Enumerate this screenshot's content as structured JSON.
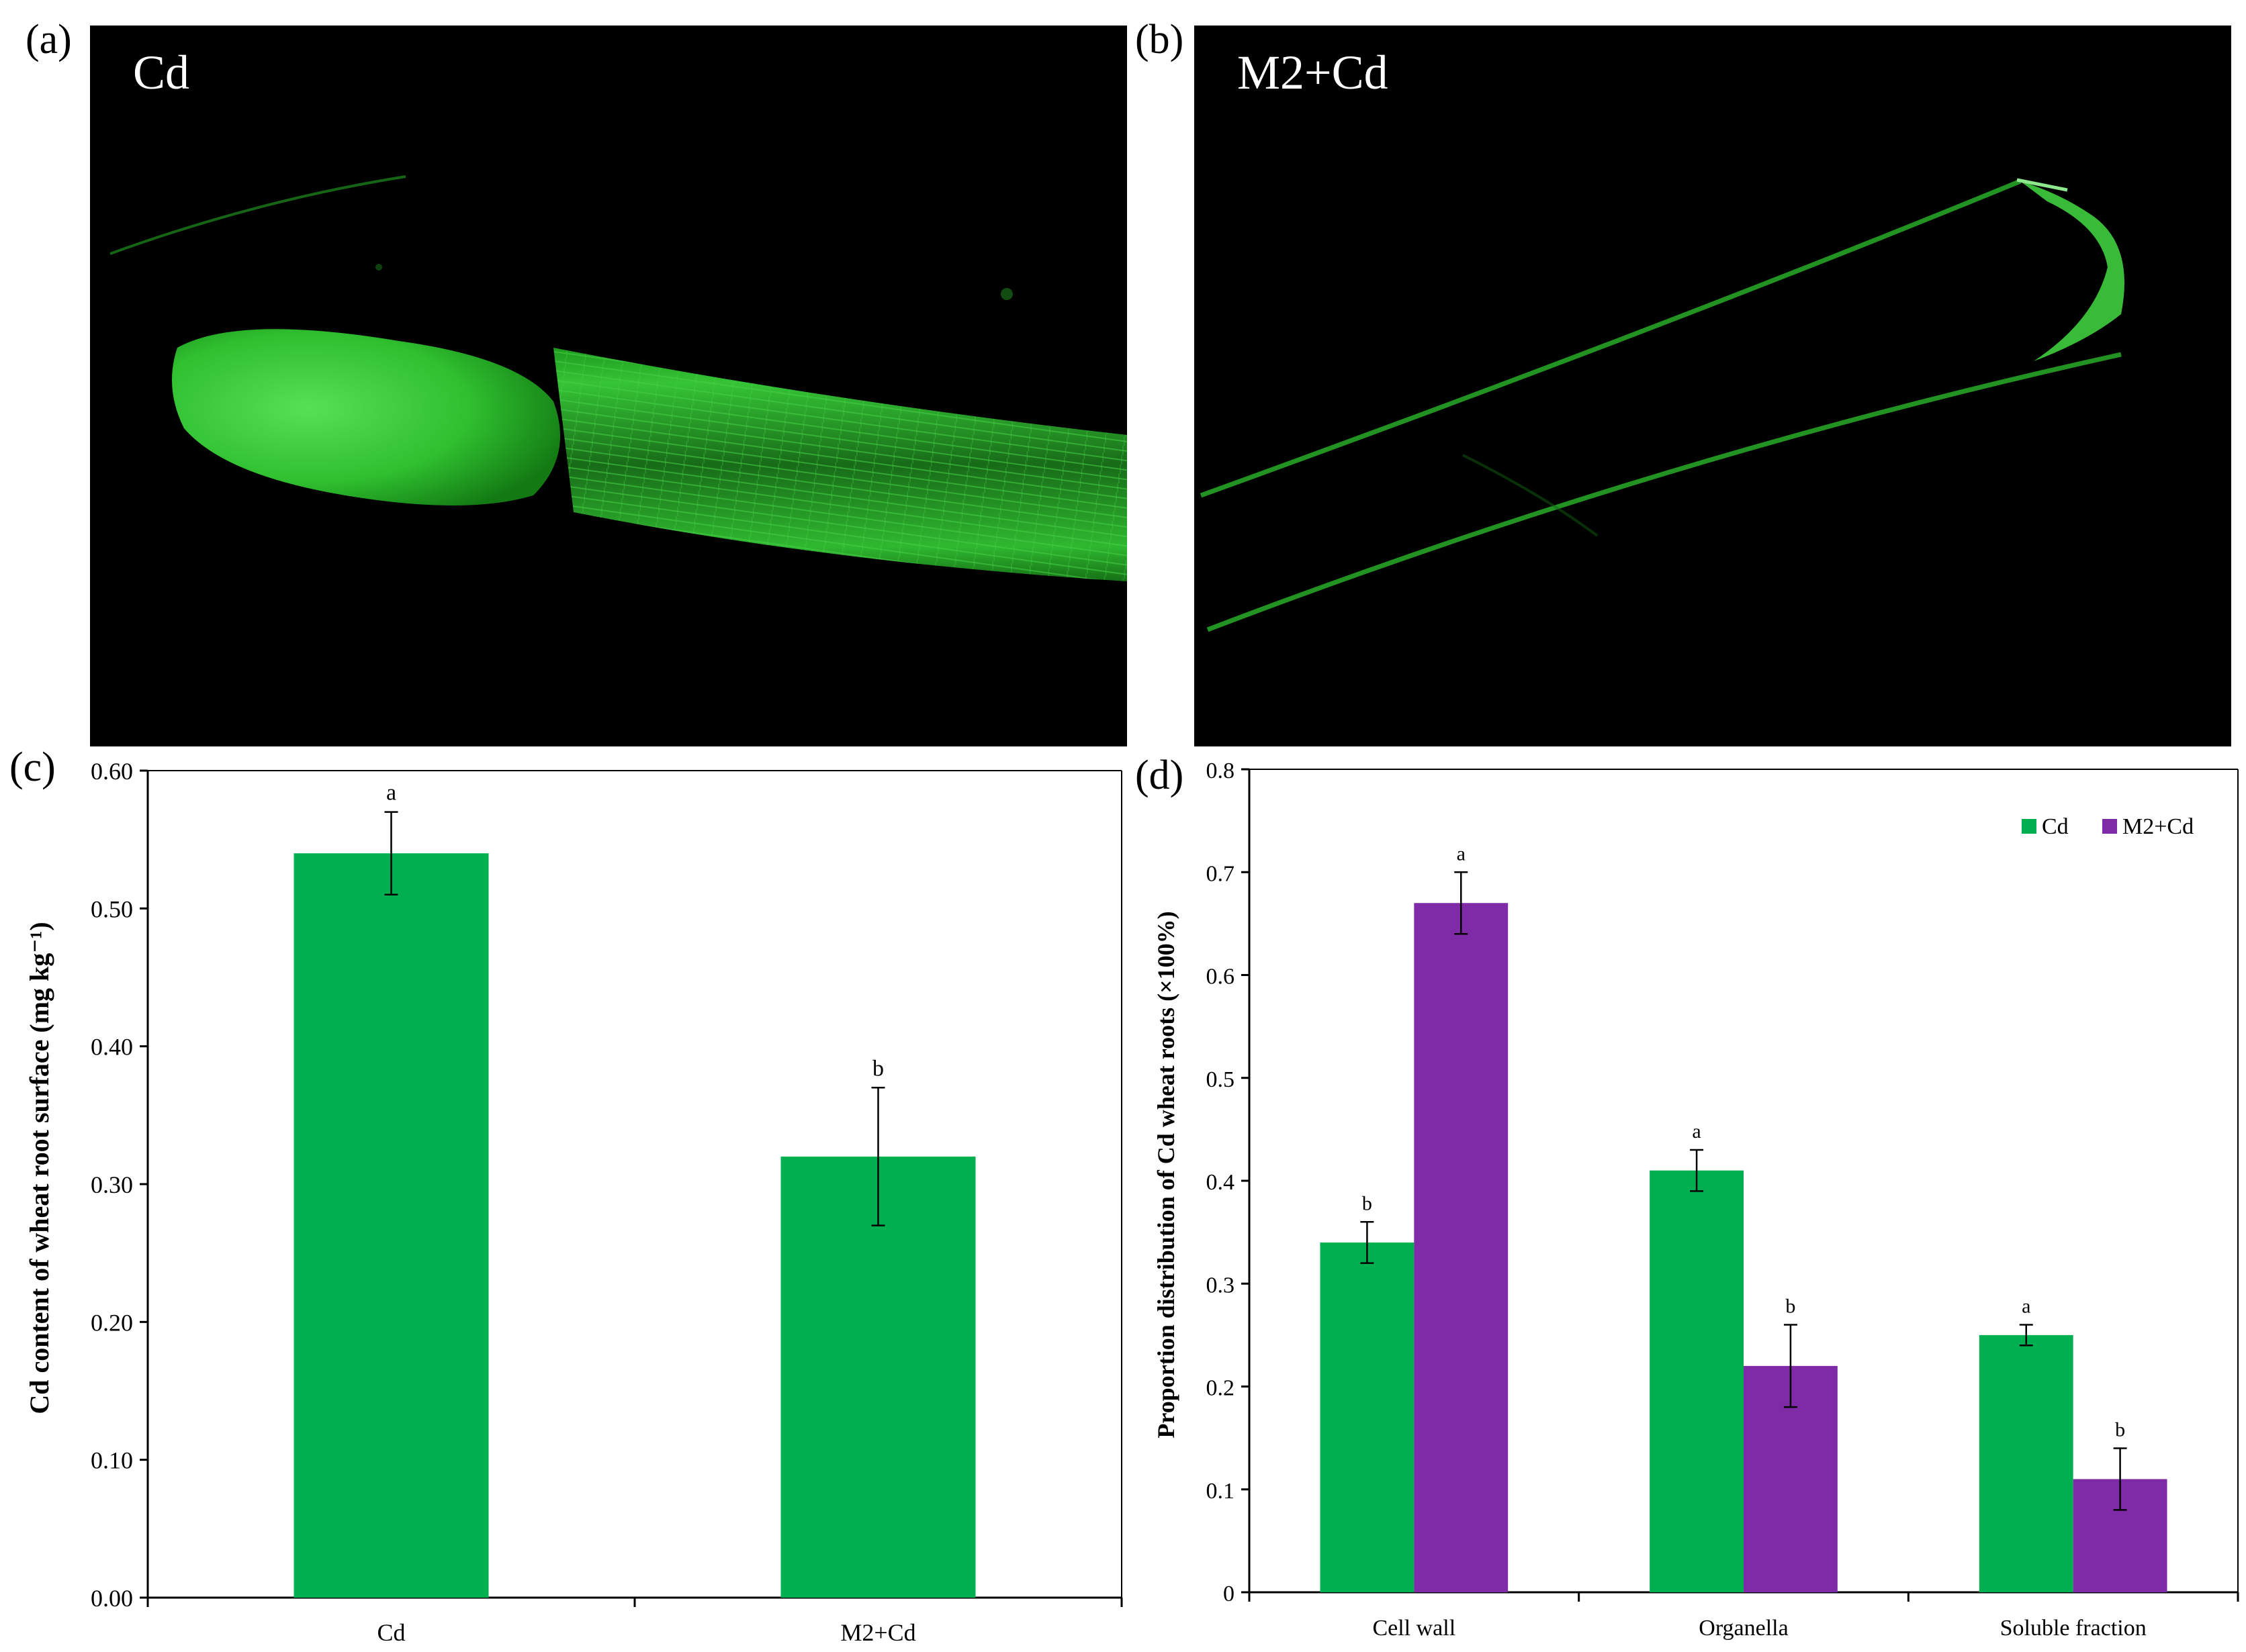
{
  "panels": {
    "a": {
      "letter": "(a)",
      "label": "Cd"
    },
    "b": {
      "letter": "(b)",
      "label": "M2+Cd"
    },
    "c": {
      "letter": "(c)"
    },
    "d": {
      "letter": "(d)"
    }
  },
  "colors": {
    "cd": "#00b050",
    "m2cd": "#7f2aa6",
    "fluorescence": "#2ecb2e"
  },
  "chart_data": [
    {
      "id": "c",
      "type": "bar",
      "categories": [
        "Cd",
        "M2+Cd"
      ],
      "series": [
        {
          "values": [
            0.54,
            0.32
          ],
          "errors": [
            0.03,
            0.05
          ],
          "letters": [
            "a",
            "b"
          ]
        }
      ],
      "ylabel": "Cd content of wheat root surface (mg kg⁻¹)",
      "ylim": [
        0,
        0.6
      ],
      "yticks": [
        "0.00",
        "0.10",
        "0.20",
        "0.30",
        "0.40",
        "0.50",
        "0.60"
      ],
      "grid": false
    },
    {
      "id": "d",
      "type": "bar",
      "categories": [
        "Cell wall",
        "Organella",
        "Soluble fraction"
      ],
      "series": [
        {
          "name": "Cd",
          "values": [
            0.34,
            0.41,
            0.25
          ],
          "errors": [
            0.02,
            0.02,
            0.01
          ],
          "letters": [
            "b",
            "a",
            "a"
          ]
        },
        {
          "name": "M2+Cd",
          "values": [
            0.67,
            0.22,
            0.11
          ],
          "errors": [
            0.03,
            0.04,
            0.03
          ],
          "letters": [
            "a",
            "b",
            "b"
          ]
        }
      ],
      "ylabel": "Proportion distribution of Cd wheat roots (×100%)",
      "ylim": [
        0,
        0.8
      ],
      "yticks": [
        "0",
        "0.1",
        "0.2",
        "0.3",
        "0.4",
        "0.5",
        "0.6",
        "0.7",
        "0.8"
      ],
      "legend": "top-right",
      "grid": false
    }
  ]
}
